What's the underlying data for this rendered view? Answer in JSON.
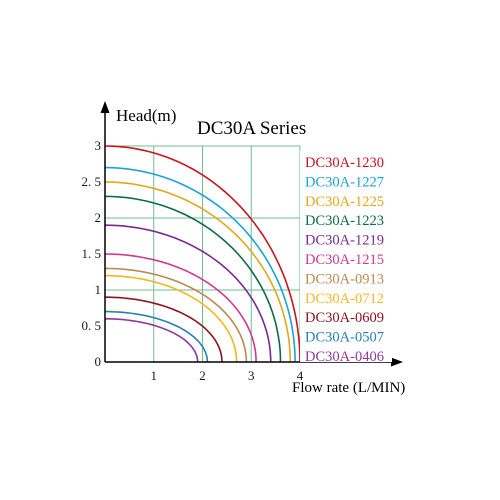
{
  "chart_data": {
    "type": "line",
    "title": "DC30A Series",
    "xlabel": "Flow rate (L/MIN)",
    "ylabel": "Head(m)",
    "xlim": [
      0,
      4
    ],
    "ylim": [
      0,
      3
    ],
    "x_ticks": [
      "1",
      "2",
      "3",
      "4"
    ],
    "y_ticks": [
      "0",
      "0. 5",
      "1",
      "1. 5",
      "2",
      "2. 5",
      "3"
    ],
    "grid": true,
    "legend_position": "right",
    "series": [
      {
        "name": "DC30A-1230",
        "color": "#c8141e",
        "max_head": 3.0,
        "max_flow": 4.0
      },
      {
        "name": "DC30A-1227",
        "color": "#1aa3d8",
        "max_head": 2.7,
        "max_flow": 3.9
      },
      {
        "name": "DC30A-1225",
        "color": "#e0a81c",
        "max_head": 2.5,
        "max_flow": 3.8
      },
      {
        "name": "DC30A-1223",
        "color": "#0c6b4b",
        "max_head": 2.3,
        "max_flow": 3.6
      },
      {
        "name": "DC30A-1219",
        "color": "#7a2a8e",
        "max_head": 1.9,
        "max_flow": 3.4
      },
      {
        "name": "DC30A-1215",
        "color": "#d2388f",
        "max_head": 1.5,
        "max_flow": 3.1
      },
      {
        "name": "DC30A-0913",
        "color": "#b88a4f",
        "max_head": 1.3,
        "max_flow": 2.9
      },
      {
        "name": "DC30A-0712",
        "color": "#f2b824",
        "max_head": 1.2,
        "max_flow": 2.7
      },
      {
        "name": "DC30A-0609",
        "color": "#8a1420",
        "max_head": 0.9,
        "max_flow": 2.4
      },
      {
        "name": "DC30A-0507",
        "color": "#2a7fb0",
        "max_head": 0.7,
        "max_flow": 2.1
      },
      {
        "name": "DC30A-0406",
        "color": "#8e3a98",
        "max_head": 0.6,
        "max_flow": 1.9
      }
    ]
  }
}
